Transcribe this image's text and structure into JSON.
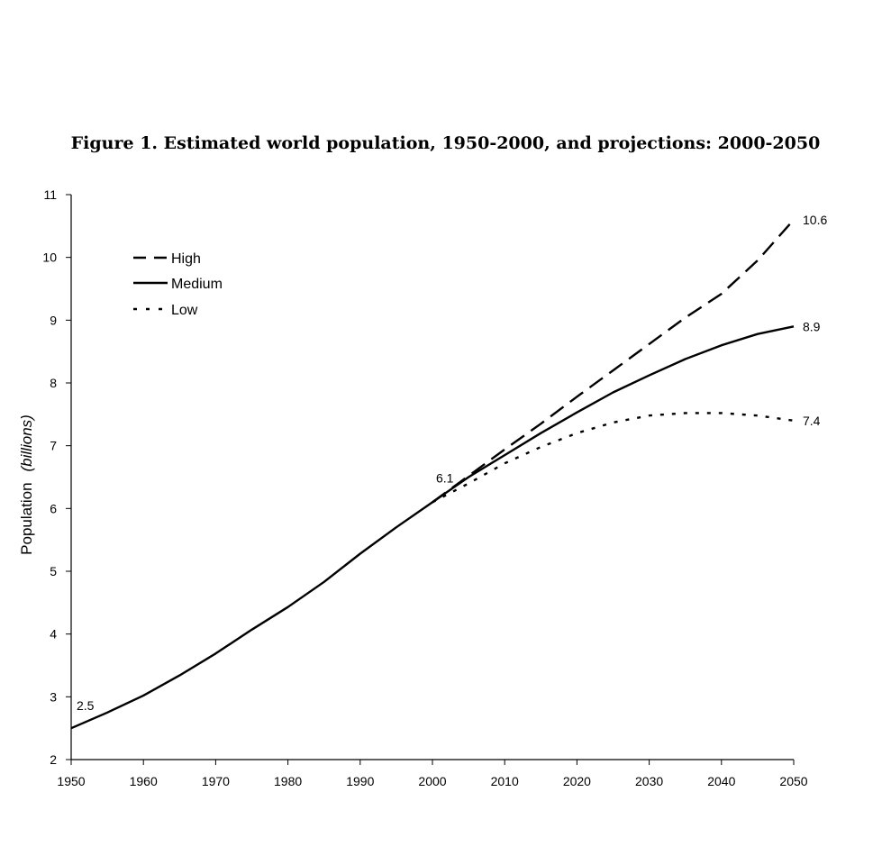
{
  "chart_data": {
    "type": "line",
    "title": "Figure 1. Estimated world population, 1950-2000, and projections: 2000-2050",
    "ylabel": "Population",
    "ylabel_unit": "(billions)",
    "xlabel": "",
    "xlim": [
      1950,
      2050
    ],
    "ylim": [
      2,
      11
    ],
    "x_ticks": [
      "1950",
      "1960",
      "1970",
      "1980",
      "1990",
      "2000",
      "2010",
      "2020",
      "2030",
      "2040",
      "2050"
    ],
    "y_ticks": [
      "2",
      "3",
      "4",
      "5",
      "6",
      "7",
      "8",
      "9",
      "10",
      "11"
    ],
    "grid": false,
    "legend_position": "top-left",
    "legend": [
      "High",
      "Medium",
      "Low"
    ],
    "series": [
      {
        "name": "High",
        "style": "dashed",
        "x": [
          2000,
          2005,
          2010,
          2015,
          2020,
          2025,
          2030,
          2035,
          2040,
          2045,
          2050
        ],
        "y": [
          6.1,
          6.52,
          6.94,
          7.35,
          7.78,
          8.2,
          8.62,
          9.04,
          9.42,
          9.95,
          10.6
        ]
      },
      {
        "name": "Medium",
        "style": "solid",
        "x": [
          1950,
          1955,
          1960,
          1965,
          1970,
          1975,
          1980,
          1985,
          1990,
          1995,
          2000,
          2005,
          2010,
          2015,
          2020,
          2025,
          2030,
          2035,
          2040,
          2045,
          2050
        ],
        "y": [
          2.5,
          2.75,
          3.02,
          3.34,
          3.69,
          4.07,
          4.43,
          4.83,
          5.28,
          5.7,
          6.1,
          6.5,
          6.85,
          7.2,
          7.53,
          7.85,
          8.12,
          8.38,
          8.6,
          8.78,
          8.9
        ]
      },
      {
        "name": "Low",
        "style": "dotted",
        "x": [
          2000,
          2005,
          2010,
          2015,
          2020,
          2025,
          2030,
          2035,
          2040,
          2045,
          2050
        ],
        "y": [
          6.1,
          6.4,
          6.72,
          6.98,
          7.2,
          7.37,
          7.48,
          7.52,
          7.52,
          7.48,
          7.4
        ]
      }
    ],
    "annotations": [
      {
        "text": "2.5",
        "x": 1950,
        "y": 2.5
      },
      {
        "text": "6.1",
        "x": 2000,
        "y": 6.1
      },
      {
        "text": "10.6",
        "x": 2050,
        "y": 10.6
      },
      {
        "text": "8.9",
        "x": 2050,
        "y": 8.9
      },
      {
        "text": "7.4",
        "x": 2050,
        "y": 7.4
      }
    ]
  }
}
